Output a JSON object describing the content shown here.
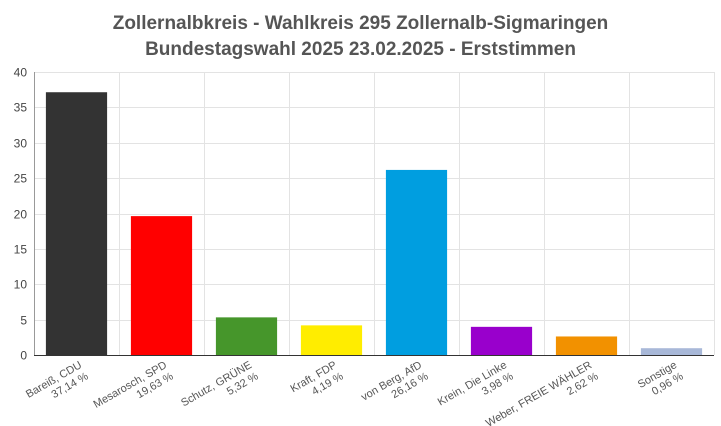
{
  "chart_data": {
    "type": "bar",
    "title": "Zollernalbkreis - Wahlkreis 295 Zollernalb-Sigmaringen",
    "subtitle": "Bundestagswahl 2025 23.02.2025  - Erststimmen",
    "xlabel": "",
    "ylabel": "",
    "ylim": [
      0,
      40
    ],
    "yticks": [
      0,
      5,
      10,
      15,
      20,
      25,
      30,
      35,
      40
    ],
    "grid": true,
    "categories": [
      {
        "name": "Bareiß, CDU",
        "value": 37.14,
        "label": "37,14 %",
        "color": "#333333"
      },
      {
        "name": "Mesarosch, SPD",
        "value": 19.63,
        "label": "19,63 %",
        "color": "#ff0000"
      },
      {
        "name": "Schutz, GRÜNE",
        "value": 5.32,
        "label": "5,32 %",
        "color": "#46962b"
      },
      {
        "name": "Kraft, FDP",
        "value": 4.19,
        "label": "4,19 %",
        "color": "#ffed00"
      },
      {
        "name": "von Berg, AfD",
        "value": 26.16,
        "label": "26,16 %",
        "color": "#009ee0"
      },
      {
        "name": "Krein, Die Linke",
        "value": 3.98,
        "label": "3,98 %",
        "color": "#9900cc"
      },
      {
        "name": "Weber, FREIE WÄHLER",
        "value": 2.62,
        "label": "2,62 %",
        "color": "#f29100"
      },
      {
        "name": "Sonstige",
        "value": 0.96,
        "label": "0,96 %",
        "color": "#a8b8d8"
      }
    ]
  }
}
